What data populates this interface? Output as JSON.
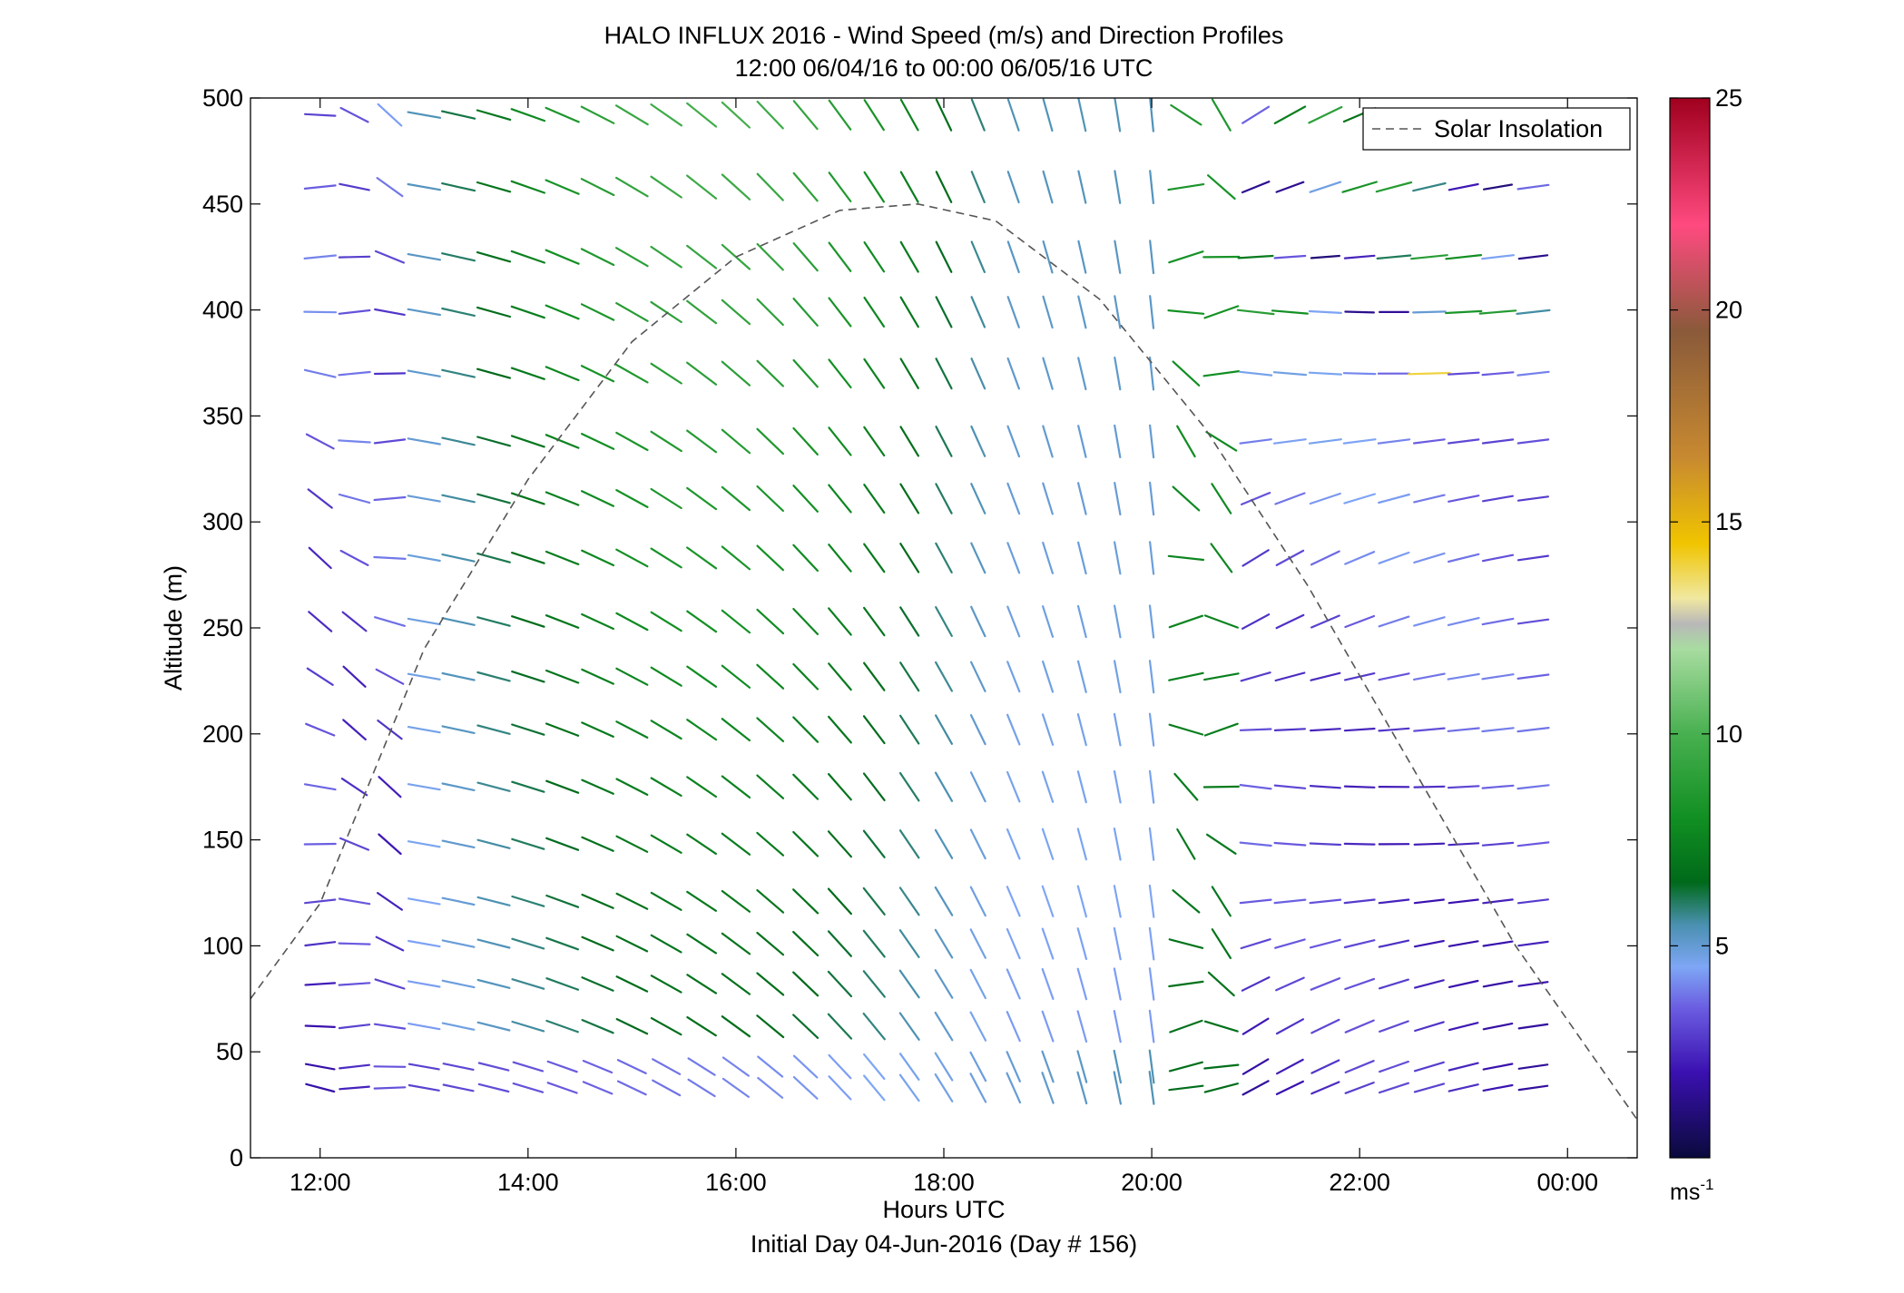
{
  "chart_data": {
    "type": "quiver",
    "title": "HALO INFLUX 2016 - Wind Speed (m/s) and Direction Profiles",
    "subtitle": "12:00 06/04/16 to 00:00 06/05/16  UTC",
    "xlabel": "Hours UTC",
    "xlabel2": "Initial Day 04-Jun-2016 (Day # 156)",
    "ylabel": "Altitude (m)",
    "xlim": [
      11.33,
      24.67
    ],
    "ylim": [
      0,
      500
    ],
    "x_ticks": [
      12,
      14,
      16,
      18,
      20,
      22,
      24
    ],
    "x_tick_labels": [
      "12:00",
      "14:00",
      "16:00",
      "18:00",
      "20:00",
      "22:00",
      "00:00"
    ],
    "y_ticks": [
      0,
      50,
      100,
      150,
      200,
      250,
      300,
      350,
      400,
      450,
      500
    ],
    "y_tick_labels": [
      "0",
      "50",
      "100",
      "150",
      "200",
      "250",
      "300",
      "350",
      "400",
      "450",
      "500"
    ],
    "legend": {
      "label": "Solar Insolation",
      "placement": "top-right",
      "style": "dashed",
      "color": "#555555"
    },
    "solar_insolation": {
      "x": [
        11.33,
        12,
        13,
        14,
        15,
        16,
        17,
        17.75,
        18.5,
        19.5,
        20.5,
        21.5,
        22.5,
        23.5,
        24.67
      ],
      "y": [
        75,
        120,
        240,
        320,
        385,
        425,
        447,
        450,
        442,
        405,
        345,
        270,
        185,
        100,
        18
      ]
    },
    "colorbar": {
      "min": 0,
      "max": 25,
      "ticks": [
        5,
        10,
        15,
        20,
        25
      ],
      "tick_labels": [
        "5",
        "10",
        "15",
        "20",
        "25"
      ],
      "unit_label": "ms",
      "unit_exponent": "-1",
      "stops": [
        {
          "v": 0,
          "c": "#0a0a3c"
        },
        {
          "v": 2,
          "c": "#3a10b0"
        },
        {
          "v": 3.5,
          "c": "#6a5be0"
        },
        {
          "v": 4.5,
          "c": "#7ea6f5"
        },
        {
          "v": 5.5,
          "c": "#4a90b0"
        },
        {
          "v": 6.5,
          "c": "#006a1a"
        },
        {
          "v": 8,
          "c": "#118f22"
        },
        {
          "v": 10,
          "c": "#48b050"
        },
        {
          "v": 12,
          "c": "#a8dca0"
        },
        {
          "v": 12.6,
          "c": "#b8b8b8"
        },
        {
          "v": 13.2,
          "c": "#f0e8a0"
        },
        {
          "v": 14.5,
          "c": "#f0c400"
        },
        {
          "v": 16.5,
          "c": "#c88a30"
        },
        {
          "v": 19.5,
          "c": "#8a5a3a"
        },
        {
          "v": 22,
          "c": "#ff4a80"
        },
        {
          "v": 25,
          "c": "#a0001e"
        }
      ]
    },
    "wind_barbs": {
      "times": [
        12.0,
        12.33,
        12.67,
        13.0,
        13.33,
        13.67,
        14.0,
        14.33,
        14.67,
        15.0,
        15.33,
        15.67,
        16.0,
        16.33,
        16.67,
        17.0,
        17.33,
        17.67,
        18.0,
        18.33,
        18.67,
        19.0,
        19.33,
        19.67,
        20.0,
        20.33,
        20.67,
        21.0,
        21.33,
        21.67,
        22.0,
        22.33,
        22.67,
        23.0,
        23.33,
        23.67
      ],
      "altitudes": [
        33,
        43,
        62,
        82,
        101,
        121,
        148,
        175,
        202,
        227,
        253,
        283,
        311,
        338,
        370,
        399,
        425,
        458,
        492
      ],
      "speed_scale_note": "Speeds 1-13 m/s; one sample near 22:40 at 370 m is ~14 m/s"
    }
  }
}
